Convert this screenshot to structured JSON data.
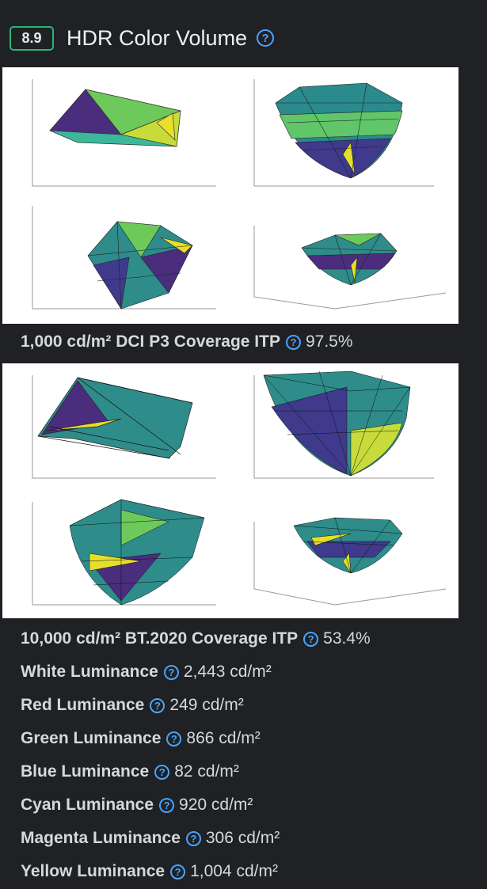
{
  "header": {
    "score": "8.9",
    "title": "HDR Color Volume",
    "help_icon": "question-circle-icon"
  },
  "panels": [
    {
      "name": "dci-p3-color-volume-plots",
      "views": 4
    },
    {
      "name": "bt2020-color-volume-plots",
      "views": 4
    }
  ],
  "measurements": [
    {
      "label": "1,000 cd/m² DCI P3 Coverage ITP",
      "value": "97.5%"
    },
    {
      "label": "10,000 cd/m² BT.2020 Coverage ITP",
      "value": "53.4%"
    },
    {
      "label": "White Luminance",
      "value": "2,443 cd/m²"
    },
    {
      "label": "Red Luminance",
      "value": "249 cd/m²"
    },
    {
      "label": "Green Luminance",
      "value": "866 cd/m²"
    },
    {
      "label": "Blue Luminance",
      "value": "82 cd/m²"
    },
    {
      "label": "Cyan Luminance",
      "value": "920 cd/m²"
    },
    {
      "label": "Magenta Luminance",
      "value": "306 cd/m²"
    },
    {
      "label": "Yellow Luminance",
      "value": "1,004 cd/m²"
    }
  ],
  "colors": {
    "accent": "#4aa3ff",
    "badge_border": "#2bb673",
    "background": "#1f2124"
  }
}
